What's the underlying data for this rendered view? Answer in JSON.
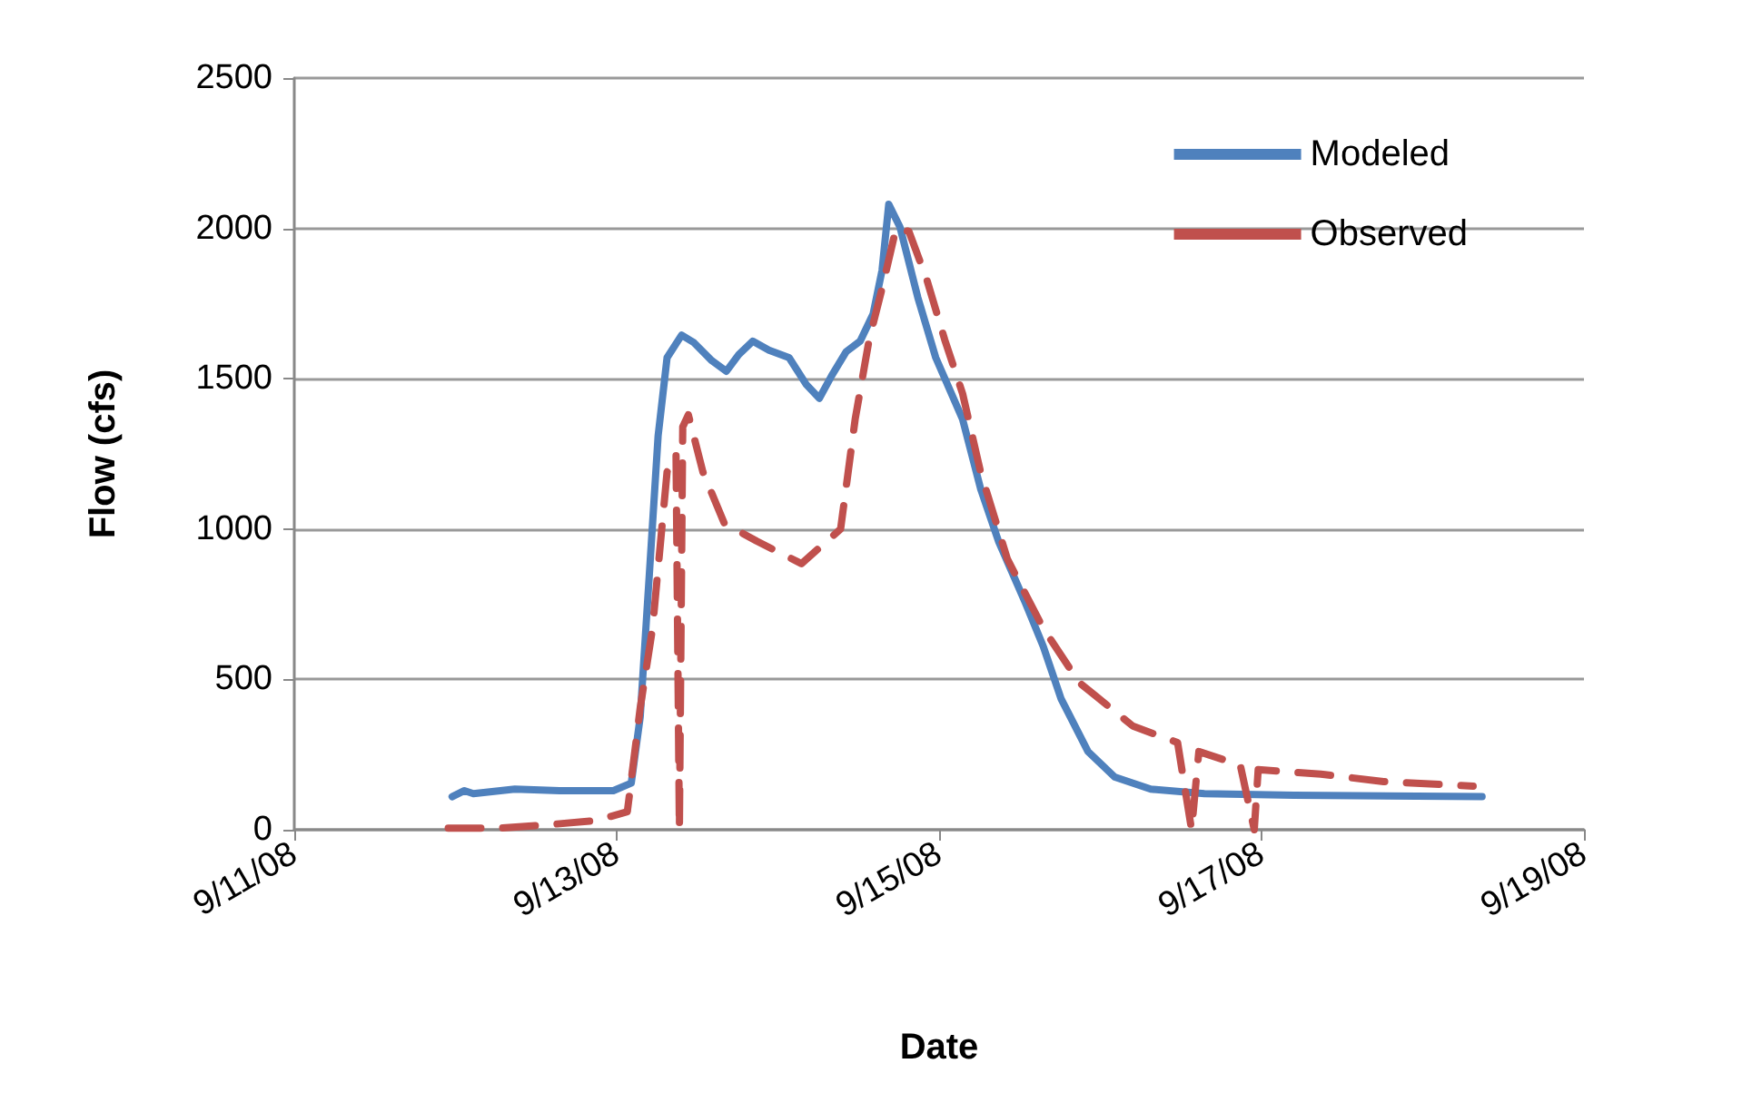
{
  "chart_data": {
    "type": "line",
    "xlabel": "Date",
    "ylabel": "Flow (cfs)",
    "xlim": [
      "--09-11",
      "--09-19"
    ],
    "xticks": [
      {
        "value": "--09-11",
        "label": "9/11/08"
      },
      {
        "value": "--09-13",
        "label": "9/13/08"
      },
      {
        "value": "--09-15",
        "label": "9/15/08"
      },
      {
        "value": "--09-17",
        "label": "9/17/08"
      },
      {
        "value": "--09-19",
        "label": "9/19/08"
      }
    ],
    "ylim": [
      0,
      2500
    ],
    "yticks": [
      0,
      500,
      1000,
      1500,
      2000,
      2500
    ],
    "grid": "y",
    "legend": "top right",
    "marker": "none",
    "series": [
      {
        "name": "Modeled",
        "color": "#4f81bd",
        "line_style": "solid",
        "x": [
          "--09-11T23:30",
          "--09-12T01:20",
          "--09-12T02:40",
          "--09-12T08:50",
          "--09-12T15:30",
          "--09-12T23:30",
          "--09-13T02:10",
          "--09-13T03:30",
          "--09-13T04:50",
          "--09-13T06:10",
          "--09-13T07:30",
          "--09-13T09:40",
          "--09-13T11:30",
          "--09-13T14:10",
          "--09-13T16:20",
          "--09-13T18:10",
          "--09-13T20:15",
          "--09-13T22:40",
          "--09-14T01:40",
          "--09-14T04:15",
          "--09-14T06:10",
          "--09-14T08:00",
          "--09-14T10:10",
          "--09-14T12:15",
          "--09-14T14:10",
          "--09-14T15:30",
          "--09-14T16:30",
          "--09-14T18:10",
          "--09-14T20:50",
          "--09-14T23:30",
          "--09-15T03:30",
          "--09-15T06:10",
          "--09-15T08:50",
          "--09-15T12:50",
          "--09-15T15:30",
          "--09-15T18:10",
          "--09-15T22:10",
          "--09-16T02:10",
          "--09-16T07:30",
          "--09-16T15:30",
          "--09-17T04:50",
          "--09-18T08:50"
        ],
        "values": [
          110,
          130,
          120,
          135,
          130,
          130,
          155,
          375,
          840,
          1310,
          1570,
          1645,
          1620,
          1560,
          1525,
          1580,
          1625,
          1595,
          1570,
          1480,
          1435,
          1510,
          1590,
          1625,
          1715,
          1860,
          2080,
          2005,
          1770,
          1570,
          1365,
          1135,
          960,
          755,
          610,
          435,
          260,
          175,
          135,
          120,
          115,
          110
        ]
      },
      {
        "name": "Observed",
        "color": "#c0504d",
        "line_style": "dashed",
        "x": [
          "--09-11T22:55",
          "--09-12T06:10",
          "--09-12T12:50",
          "--09-12T20:50",
          "--09-13T01:35",
          "--09-13T03:30",
          "--09-13T05:20",
          "--09-13T07:30",
          "--09-13T08:50",
          "--09-13T09:20",
          "--09-13T09:50",
          "--09-13T10:40",
          "--09-13T12:50",
          "--09-13T16:00",
          "--09-13T20:50",
          "--09-14T03:30",
          "--09-14T09:20",
          "--09-14T11:30",
          "--09-14T13:35",
          "--09-14T15:30",
          "--09-14T17:35",
          "--09-14T19:30",
          "--09-14T22:10",
          "--09-15T00:50",
          "--09-15T03:30",
          "--09-15T06:10",
          "--09-15T10:10",
          "--09-15T15:30",
          "--09-15T20:50",
          "--09-16T04:50",
          "--09-16T11:30",
          "--09-16T13:35",
          "--09-16T14:40",
          "--09-16T20:50",
          "--09-16T22:55",
          "--09-16T23:30",
          "--09-17T08:50",
          "--09-17T18:10",
          "--09-18T07:30"
        ],
        "values": [
          5,
          5,
          15,
          30,
          60,
          405,
          670,
          1190,
          1250,
          0,
          1340,
          1380,
          1190,
          1020,
          960,
          885,
          1000,
          1365,
          1630,
          1800,
          2000,
          1990,
          1830,
          1630,
          1450,
          1190,
          900,
          670,
          490,
          345,
          290,
          0,
          260,
          215,
          0,
          200,
          185,
          160,
          145
        ]
      }
    ]
  }
}
